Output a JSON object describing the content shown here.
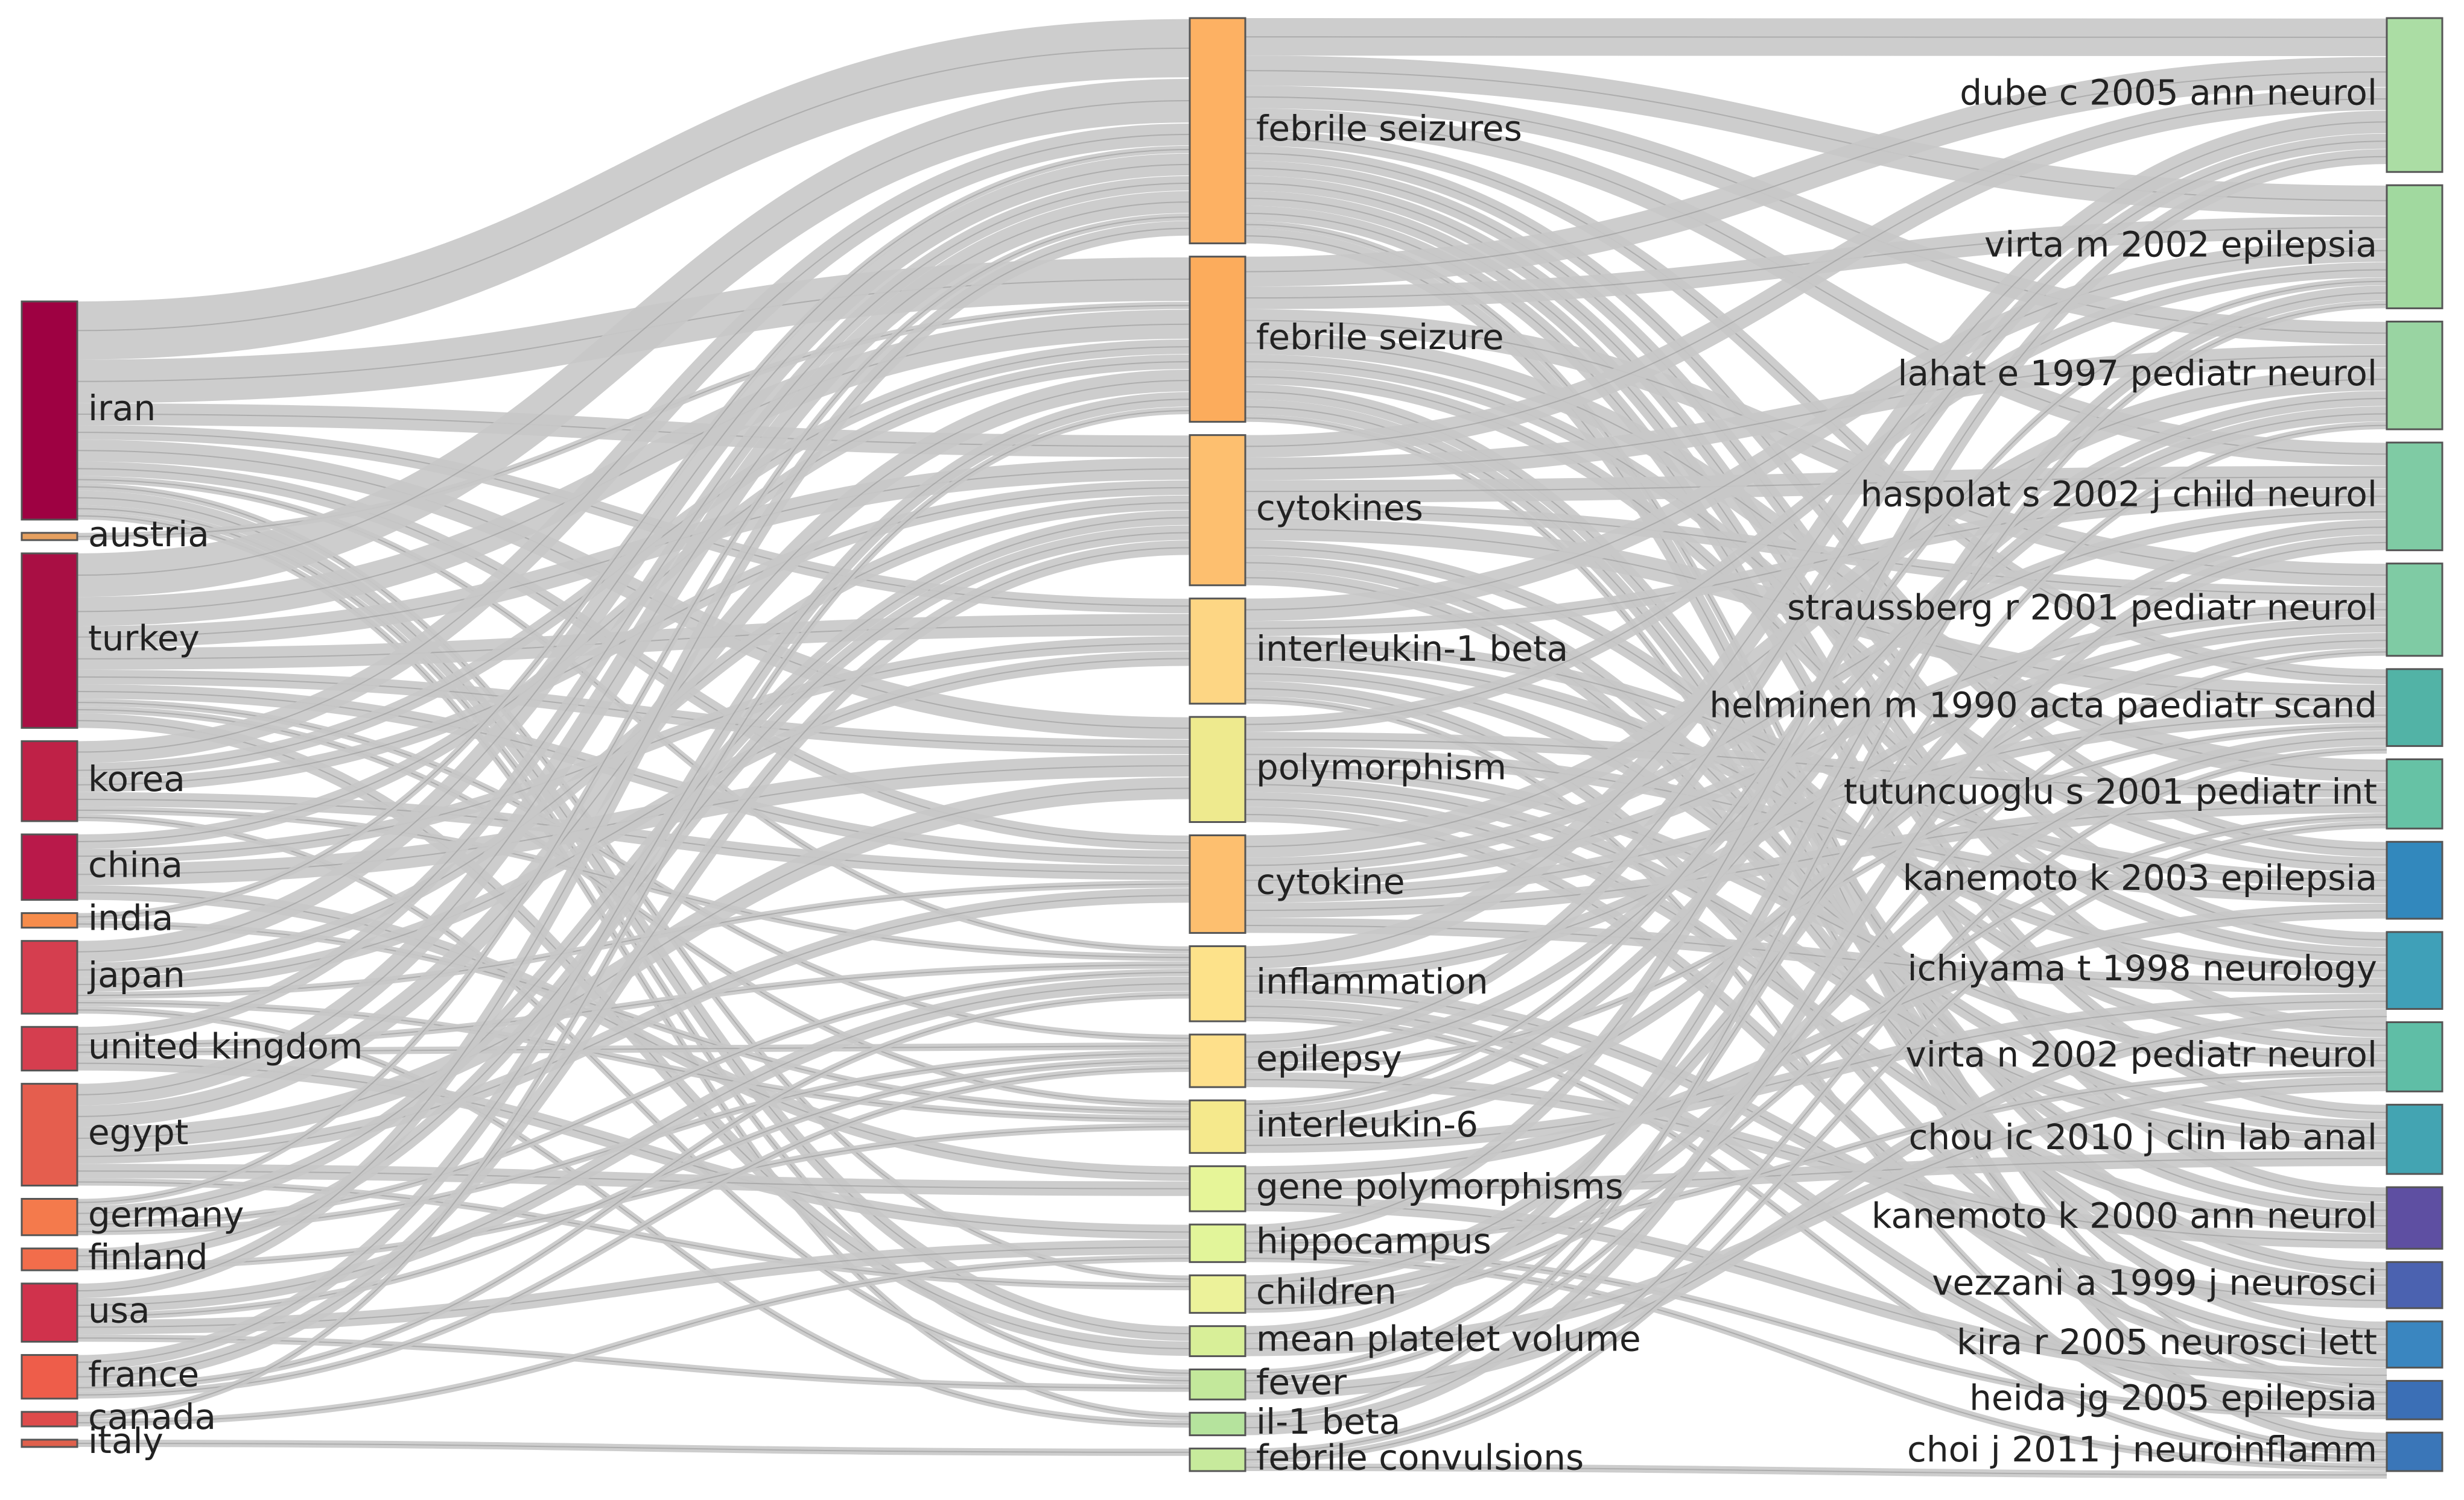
{
  "diagram": {
    "type": "three-field sankey",
    "link_color": "#c8c8c8",
    "columns": [
      {
        "name": "countries",
        "nodes": [
          {
            "id": "iran",
            "label": "iran",
            "value": 30,
            "color": "#9e0142"
          },
          {
            "id": "austria",
            "label": "austria",
            "value": 1,
            "color": "#e5a060"
          },
          {
            "id": "turkey",
            "label": "turkey",
            "value": 24,
            "color": "#a90f44"
          },
          {
            "id": "korea",
            "label": "korea",
            "value": 11,
            "color": "#bf2147"
          },
          {
            "id": "china",
            "label": "china",
            "value": 9,
            "color": "#b9194a"
          },
          {
            "id": "india",
            "label": "india",
            "value": 2,
            "color": "#f68c4b"
          },
          {
            "id": "japan",
            "label": "japan",
            "value": 10,
            "color": "#d53e4f"
          },
          {
            "id": "united-kingdom",
            "label": "united kingdom",
            "value": 6,
            "color": "#d53e4f"
          },
          {
            "id": "egypt",
            "label": "egypt",
            "value": 14,
            "color": "#e55e4e"
          },
          {
            "id": "germany",
            "label": "germany",
            "value": 5,
            "color": "#f47a4c"
          },
          {
            "id": "finland",
            "label": "finland",
            "value": 3,
            "color": "#f26d4b"
          },
          {
            "id": "usa",
            "label": "usa",
            "value": 8,
            "color": "#d0324c"
          },
          {
            "id": "france",
            "label": "france",
            "value": 6,
            "color": "#ee5d4a"
          },
          {
            "id": "canada",
            "label": "canada",
            "value": 2,
            "color": "#de4b4b"
          },
          {
            "id": "italy",
            "label": "italy",
            "value": 1,
            "color": "#e0604c"
          }
        ]
      },
      {
        "name": "keywords",
        "nodes": [
          {
            "id": "febrile-seizures",
            "label": "febrile seizures",
            "value": 30,
            "color": "#fdb163"
          },
          {
            "id": "febrile-seizure",
            "label": "febrile seizure",
            "value": 22,
            "color": "#fcac5c"
          },
          {
            "id": "cytokines",
            "label": "cytokines",
            "value": 20,
            "color": "#fdbf6f"
          },
          {
            "id": "interleukin-1-beta",
            "label": "interleukin-1 beta",
            "value": 14,
            "color": "#fdd684"
          },
          {
            "id": "polymorphism",
            "label": "polymorphism",
            "value": 14,
            "color": "#eeea8e"
          },
          {
            "id": "cytokine",
            "label": "cytokine",
            "value": 13,
            "color": "#fdbf6f"
          },
          {
            "id": "inflammation",
            "label": "inflammation",
            "value": 10,
            "color": "#fde28a"
          },
          {
            "id": "epilepsy",
            "label": "epilepsy",
            "value": 7,
            "color": "#fee08b"
          },
          {
            "id": "interleukin-6",
            "label": "interleukin-6",
            "value": 7,
            "color": "#f5e98c"
          },
          {
            "id": "gene-polymorphisms",
            "label": "gene polymorphisms",
            "value": 6,
            "color": "#e6f598"
          },
          {
            "id": "hippocampus",
            "label": "hippocampus",
            "value": 5,
            "color": "#e2f59a"
          },
          {
            "id": "children",
            "label": "children",
            "value": 5,
            "color": "#ecf29a"
          },
          {
            "id": "mean-platelet-volume",
            "label": "mean platelet volume",
            "value": 4,
            "color": "#d8ef98"
          },
          {
            "id": "fever",
            "label": "fever",
            "value": 4,
            "color": "#c3e89b"
          },
          {
            "id": "il-1-beta",
            "label": "il-1 beta",
            "value": 3,
            "color": "#b5e39d"
          },
          {
            "id": "febrile-convulsions",
            "label": "febrile convulsions",
            "value": 3,
            "color": "#c7ea9c"
          }
        ]
      },
      {
        "name": "references",
        "nodes": [
          {
            "id": "dube",
            "label": "dube c 2005 ann neurol",
            "value": 20,
            "color": "#abdda4"
          },
          {
            "id": "virta-m",
            "label": "virta m 2002 epilepsia",
            "value": 16,
            "color": "#a1d99f"
          },
          {
            "id": "lahat",
            "label": "lahat e 1997 pediatr neurol",
            "value": 14,
            "color": "#99d4a2"
          },
          {
            "id": "haspolat",
            "label": "haspolat s 2002 j child neurol",
            "value": 14,
            "color": "#7fcba4"
          },
          {
            "id": "straussberg",
            "label": "straussberg r 2001 pediatr neurol",
            "value": 12,
            "color": "#7fcba4"
          },
          {
            "id": "helminen",
            "label": "helminen m 1990 acta paediatr scand",
            "value": 10,
            "color": "#52b3a6"
          },
          {
            "id": "tutuncuoglu",
            "label": "tutuncuoglu s 2001 pediatr int",
            "value": 9,
            "color": "#66c2a5"
          },
          {
            "id": "kanemoto-2003",
            "label": "kanemoto k 2003 epilepsia",
            "value": 10,
            "color": "#3288bd"
          },
          {
            "id": "ichiyama",
            "label": "ichiyama t 1998 neurology",
            "value": 10,
            "color": "#3fa0b8"
          },
          {
            "id": "virta-n",
            "label": "virta n 2002 pediatr neurol",
            "value": 9,
            "color": "#5fbea6"
          },
          {
            "id": "chou",
            "label": "chou ic 2010 j clin lab anal",
            "value": 9,
            "color": "#43a4b2"
          },
          {
            "id": "kanemoto-2000",
            "label": "kanemoto k 2000 ann neurol",
            "value": 8,
            "color": "#5e4fa2"
          },
          {
            "id": "vezzani",
            "label": "vezzani a 1999 j neurosci",
            "value": 6,
            "color": "#4b62b0"
          },
          {
            "id": "kira",
            "label": "kira r 2005 neurosci lett",
            "value": 6,
            "color": "#3a86c0"
          },
          {
            "id": "heida",
            "label": "heida jg 2005 epilepsia",
            "value": 5,
            "color": "#3b6fb6"
          },
          {
            "id": "choi",
            "label": "choi j 2011 j neuroinflamm",
            "value": 5,
            "color": "#3a76b8"
          }
        ]
      }
    ],
    "links_left": [
      [
        "iran",
        "febrile-seizures",
        8
      ],
      [
        "iran",
        "febrile-seizure",
        6
      ],
      [
        "iran",
        "cytokines",
        3
      ],
      [
        "iran",
        "polymorphism",
        3
      ],
      [
        "iran",
        "cytokine",
        2
      ],
      [
        "iran",
        "interleukin-1-beta",
        2
      ],
      [
        "iran",
        "inflammation",
        1
      ],
      [
        "iran",
        "mean-platelet-volume",
        2
      ],
      [
        "iran",
        "children",
        1
      ],
      [
        "iran",
        "fever",
        1
      ],
      [
        "iran",
        "il-1-beta",
        1
      ],
      [
        "austria",
        "febrile-seizure",
        1
      ],
      [
        "turkey",
        "febrile-seizures",
        6
      ],
      [
        "turkey",
        "febrile-seizure",
        4
      ],
      [
        "turkey",
        "cytokines",
        3
      ],
      [
        "turkey",
        "interleukin-1-beta",
        3
      ],
      [
        "turkey",
        "polymorphism",
        2
      ],
      [
        "turkey",
        "cytokine",
        2
      ],
      [
        "turkey",
        "epilepsy",
        1
      ],
      [
        "turkey",
        "interleukin-6",
        1
      ],
      [
        "turkey",
        "mean-platelet-volume",
        2
      ],
      [
        "korea",
        "febrile-seizures",
        3
      ],
      [
        "korea",
        "febrile-seizure",
        2
      ],
      [
        "korea",
        "cytokines",
        2
      ],
      [
        "korea",
        "cytokine",
        2
      ],
      [
        "korea",
        "inflammation",
        1
      ],
      [
        "korea",
        "fever",
        1
      ],
      [
        "china",
        "febrile-seizure",
        2
      ],
      [
        "china",
        "polymorphism",
        3
      ],
      [
        "china",
        "interleukin-1-beta",
        2
      ],
      [
        "china",
        "gene-polymorphisms",
        2
      ],
      [
        "india",
        "febrile-seizures",
        1
      ],
      [
        "india",
        "interleukin-6",
        1
      ],
      [
        "japan",
        "febrile-seizures",
        3
      ],
      [
        "japan",
        "cytokines",
        2
      ],
      [
        "japan",
        "interleukin-1-beta",
        2
      ],
      [
        "japan",
        "cytokine",
        1
      ],
      [
        "japan",
        "interleukin-6",
        1
      ],
      [
        "japan",
        "il-1-beta",
        1
      ],
      [
        "united-kingdom",
        "febrile-seizures",
        2
      ],
      [
        "united-kingdom",
        "hippocampus",
        2
      ],
      [
        "united-kingdom",
        "epilepsy",
        1
      ],
      [
        "united-kingdom",
        "inflammation",
        1
      ],
      [
        "egypt",
        "febrile-seizures",
        3
      ],
      [
        "egypt",
        "febrile-seizure",
        3
      ],
      [
        "egypt",
        "polymorphism",
        3
      ],
      [
        "egypt",
        "gene-polymorphisms",
        2
      ],
      [
        "egypt",
        "cytokine",
        2
      ],
      [
        "egypt",
        "children",
        1
      ],
      [
        "germany",
        "febrile-seizures",
        1
      ],
      [
        "germany",
        "cytokines",
        2
      ],
      [
        "germany",
        "inflammation",
        1
      ],
      [
        "germany",
        "epilepsy",
        1
      ],
      [
        "finland",
        "cytokines",
        2
      ],
      [
        "finland",
        "interleukin-6",
        1
      ],
      [
        "usa",
        "febrile-seizures",
        2
      ],
      [
        "usa",
        "hippocampus",
        2
      ],
      [
        "usa",
        "inflammation",
        2
      ],
      [
        "usa",
        "epilepsy",
        1
      ],
      [
        "usa",
        "fever",
        1
      ],
      [
        "france",
        "febrile-seizure",
        2
      ],
      [
        "france",
        "cytokines",
        2
      ],
      [
        "france",
        "epilepsy",
        1
      ],
      [
        "france",
        "inflammation",
        1
      ],
      [
        "canada",
        "hippocampus",
        1
      ],
      [
        "canada",
        "febrile-seizure",
        1
      ],
      [
        "italy",
        "febrile-convulsions",
        1
      ]
    ],
    "links_right": [
      [
        "febrile-seizures",
        "dube",
        5
      ],
      [
        "febrile-seizures",
        "virta-m",
        4
      ],
      [
        "febrile-seizures",
        "lahat",
        3
      ],
      [
        "febrile-seizures",
        "haspolat",
        3
      ],
      [
        "febrile-seizures",
        "helminen",
        2
      ],
      [
        "febrile-seizures",
        "kanemoto-2003",
        2
      ],
      [
        "febrile-seizures",
        "ichiyama",
        2
      ],
      [
        "febrile-seizures",
        "virta-n",
        2
      ],
      [
        "febrile-seizures",
        "chou",
        2
      ],
      [
        "febrile-seizures",
        "kanemoto-2000",
        2
      ],
      [
        "febrile-seizures",
        "heida",
        1
      ],
      [
        "febrile-seizures",
        "choi",
        2
      ],
      [
        "febrile-seizure",
        "dube",
        4
      ],
      [
        "febrile-seizure",
        "virta-m",
        3
      ],
      [
        "febrile-seizure",
        "straussberg",
        3
      ],
      [
        "febrile-seizure",
        "tutuncuoglu",
        3
      ],
      [
        "febrile-seizure",
        "kanemoto-2003",
        2
      ],
      [
        "febrile-seizure",
        "ichiyama",
        2
      ],
      [
        "febrile-seizure",
        "vezzani",
        2
      ],
      [
        "febrile-seizure",
        "kira",
        2
      ],
      [
        "febrile-seizure",
        "heida",
        1
      ],
      [
        "cytokines",
        "dube",
        3
      ],
      [
        "cytokines",
        "lahat",
        3
      ],
      [
        "cytokines",
        "haspolat",
        3
      ],
      [
        "cytokines",
        "helminen",
        3
      ],
      [
        "cytokines",
        "straussberg",
        2
      ],
      [
        "cytokines",
        "virta-n",
        2
      ],
      [
        "cytokines",
        "kanemoto-2000",
        2
      ],
      [
        "cytokines",
        "vezzani",
        2
      ],
      [
        "interleukin-1-beta",
        "virta-m",
        3
      ],
      [
        "interleukin-1-beta",
        "haspolat",
        2
      ],
      [
        "interleukin-1-beta",
        "kanemoto-2003",
        2
      ],
      [
        "interleukin-1-beta",
        "kira",
        2
      ],
      [
        "interleukin-1-beta",
        "chou",
        2
      ],
      [
        "interleukin-1-beta",
        "choi",
        1
      ],
      [
        "interleukin-1-beta",
        "ichiyama",
        2
      ],
      [
        "polymorphism",
        "virta-m",
        2
      ],
      [
        "polymorphism",
        "kanemoto-2003",
        2
      ],
      [
        "polymorphism",
        "chou",
        2
      ],
      [
        "polymorphism",
        "kanemoto-2000",
        2
      ],
      [
        "polymorphism",
        "tutuncuoglu",
        2
      ],
      [
        "polymorphism",
        "kira",
        2
      ],
      [
        "polymorphism",
        "virta-n",
        2
      ],
      [
        "cytokine",
        "lahat",
        3
      ],
      [
        "cytokine",
        "straussberg",
        2
      ],
      [
        "cytokine",
        "helminen",
        2
      ],
      [
        "cytokine",
        "ichiyama",
        2
      ],
      [
        "cytokine",
        "haspolat",
        2
      ],
      [
        "cytokine",
        "tutuncuoglu",
        2
      ],
      [
        "inflammation",
        "dube",
        3
      ],
      [
        "inflammation",
        "vezzani",
        2
      ],
      [
        "inflammation",
        "heida",
        2
      ],
      [
        "inflammation",
        "choi",
        1
      ],
      [
        "inflammation",
        "straussberg",
        2
      ],
      [
        "epilepsy",
        "dube",
        2
      ],
      [
        "epilepsy",
        "lahat",
        2
      ],
      [
        "epilepsy",
        "helminen",
        1
      ],
      [
        "epilepsy",
        "kanemoto-2000",
        2
      ],
      [
        "interleukin-6",
        "lahat",
        2
      ],
      [
        "interleukin-6",
        "straussberg",
        2
      ],
      [
        "interleukin-6",
        "virta-m",
        1
      ],
      [
        "interleukin-6",
        "ichiyama",
        2
      ],
      [
        "gene-polymorphisms",
        "kanemoto-2003",
        2
      ],
      [
        "gene-polymorphisms",
        "chou",
        2
      ],
      [
        "gene-polymorphisms",
        "kira",
        2
      ],
      [
        "hippocampus",
        "dube",
        2
      ],
      [
        "hippocampus",
        "heida",
        1
      ],
      [
        "hippocampus",
        "choi",
        1
      ],
      [
        "hippocampus",
        "virta-n",
        1
      ],
      [
        "children",
        "haspolat",
        2
      ],
      [
        "children",
        "helminen",
        2
      ],
      [
        "children",
        "tutuncuoglu",
        1
      ],
      [
        "mean-platelet-volume",
        "virta-n",
        2
      ],
      [
        "mean-platelet-volume",
        "virta-m",
        2
      ],
      [
        "fever",
        "ichiyama",
        2
      ],
      [
        "fever",
        "lahat",
        1
      ],
      [
        "fever",
        "straussberg",
        1
      ],
      [
        "il-1-beta",
        "virta-m",
        1
      ],
      [
        "il-1-beta",
        "haspolat",
        2
      ],
      [
        "febrile-convulsions",
        "choi",
        1
      ],
      [
        "febrile-convulsions",
        "helminen",
        1
      ],
      [
        "febrile-convulsions",
        "tutuncuoglu",
        1
      ]
    ]
  }
}
